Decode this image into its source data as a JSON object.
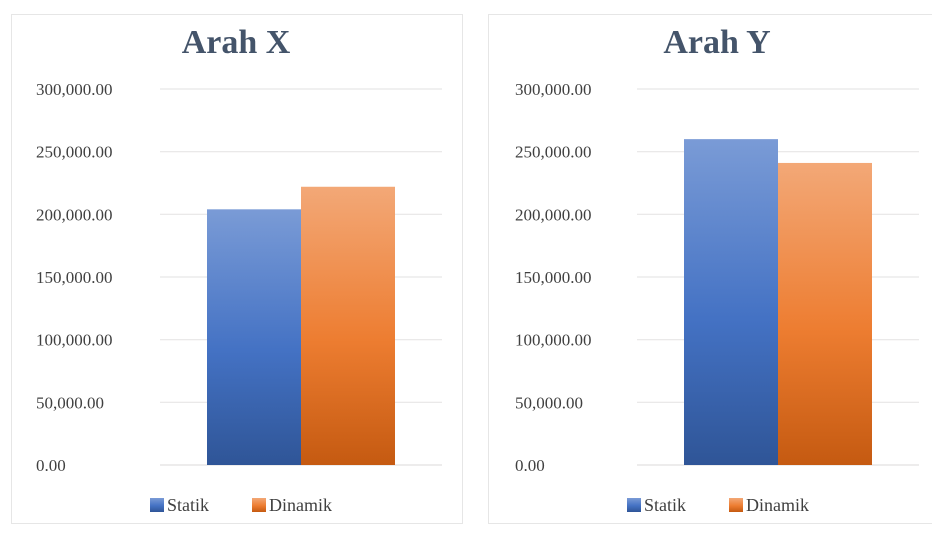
{
  "chart_data": [
    {
      "type": "bar",
      "title": "Arah X",
      "categories": [
        ""
      ],
      "series": [
        {
          "name": "Statik",
          "values": [
            204000
          ]
        },
        {
          "name": "Dinamik",
          "values": [
            222000
          ]
        }
      ],
      "ylim": [
        0,
        300000
      ],
      "yticks": [
        "0.00",
        "50,000.00",
        "100,000.00",
        "150,000.00",
        "200,000.00",
        "250,000.00",
        "300,000.00"
      ],
      "grid": true,
      "legend": "bottom"
    },
    {
      "type": "bar",
      "title": "Arah Y",
      "categories": [
        ""
      ],
      "series": [
        {
          "name": "Statik",
          "values": [
            260000
          ]
        },
        {
          "name": "Dinamik",
          "values": [
            241000
          ]
        }
      ],
      "ylim": [
        0,
        300000
      ],
      "yticks": [
        "0.00",
        "50,000.00",
        "100,000.00",
        "150,000.00",
        "200,000.00",
        "250,000.00",
        "300,000.00"
      ],
      "grid": true,
      "legend": "bottom"
    }
  ],
  "colors": {
    "statik": "#4472c4",
    "dinamik": "#ed7d31",
    "gridline": "#e7e6e6",
    "title": "#44546a",
    "text": "#404040"
  }
}
